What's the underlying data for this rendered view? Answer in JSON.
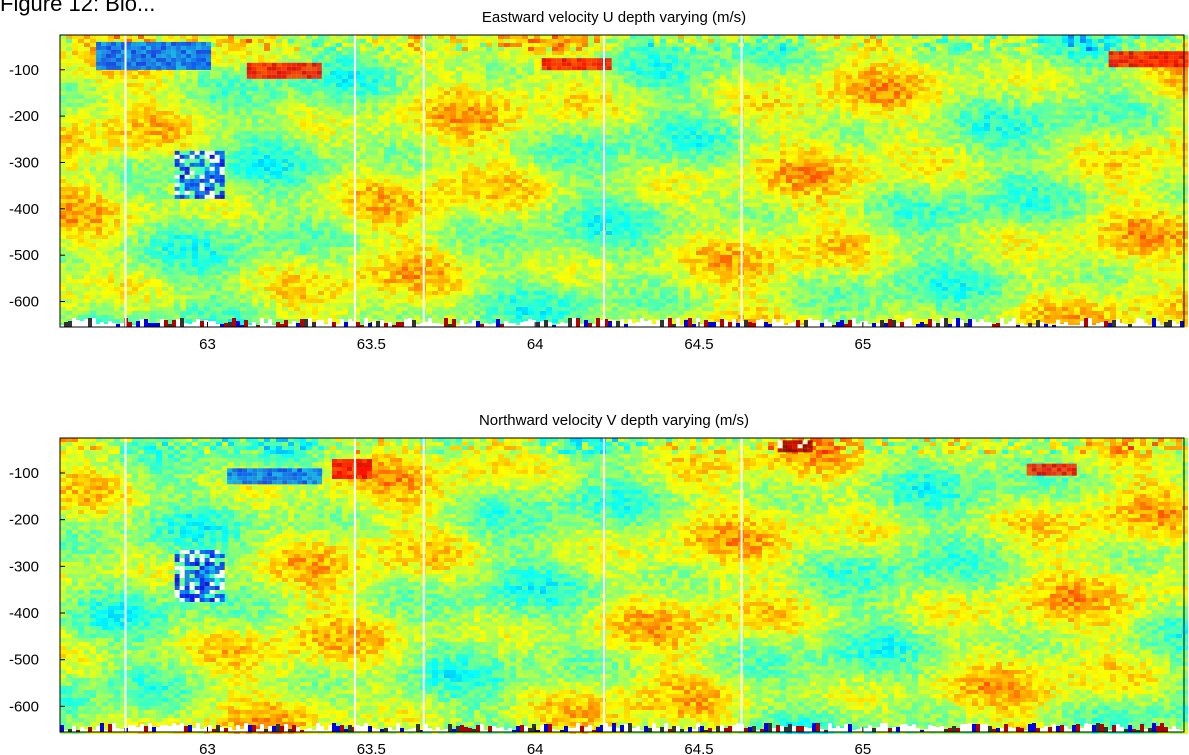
{
  "figure_caption": "Figure 12: Bio...",
  "chart_data": [
    {
      "type": "heatmap",
      "title": "Eastward velocity U depth varying (m/s)",
      "xlabel": "",
      "ylabel": "",
      "xlim": [
        62.55,
        65.98
      ],
      "ylim": [
        -655,
        -25
      ],
      "x_ticks": [
        63,
        63.5,
        64,
        64.5,
        65
      ],
      "x_tick_labels": [
        "63",
        "63.5",
        "64",
        "64.5",
        "65"
      ],
      "y_ticks": [
        -100,
        -200,
        -300,
        -400,
        -500,
        -600
      ],
      "y_tick_labels": [
        "-100",
        "-200",
        "-300",
        "-400",
        "-500",
        "-600"
      ],
      "colormap": "jet",
      "gap_lines_x": [
        62.75,
        63.45,
        63.66,
        64.21,
        64.63
      ],
      "features": [
        {
          "x": [
            63.12,
            63.34
          ],
          "y": [
            -85,
            -115
          ],
          "level": "red"
        },
        {
          "x": [
            64.02,
            64.22
          ],
          "y": [
            -75,
            -100
          ],
          "level": "red"
        },
        {
          "x": [
            65.75,
            65.98
          ],
          "y": [
            -60,
            -90
          ],
          "level": "red"
        },
        {
          "x": [
            62.9,
            63.04
          ],
          "y": [
            -275,
            -375
          ],
          "level": "mixed"
        },
        {
          "x": [
            62.66,
            63.0
          ],
          "y": [
            -40,
            -100
          ],
          "level": "blue"
        }
      ]
    },
    {
      "type": "heatmap",
      "title": "Northward velocity V depth varying (m/s)",
      "xlabel": "",
      "ylabel": "",
      "xlim": [
        62.55,
        65.98
      ],
      "ylim": [
        -655,
        -25
      ],
      "x_ticks": [
        63,
        63.5,
        64,
        64.5,
        65
      ],
      "x_tick_labels": [
        "63",
        "63.5",
        "64",
        "64.5",
        "65"
      ],
      "y_ticks": [
        -100,
        -200,
        -300,
        -400,
        -500,
        -600
      ],
      "y_tick_labels": [
        "-100",
        "-200",
        "-300",
        "-400",
        "-500",
        "-600"
      ],
      "colormap": "jet",
      "gap_lines_x": [
        62.75,
        63.45,
        63.66,
        64.21,
        64.63
      ],
      "features": [
        {
          "x": [
            63.06,
            63.34
          ],
          "y": [
            -90,
            -120
          ],
          "level": "blue"
        },
        {
          "x": [
            63.38,
            63.5
          ],
          "y": [
            -70,
            -110
          ],
          "level": "red"
        },
        {
          "x": [
            64.74,
            64.84
          ],
          "y": [
            -30,
            -50
          ],
          "level": "dark"
        },
        {
          "x": [
            65.5,
            65.64
          ],
          "y": [
            -80,
            -100
          ],
          "level": "red"
        },
        {
          "x": [
            62.9,
            63.04
          ],
          "y": [
            -265,
            -375
          ],
          "level": "mixed"
        }
      ]
    }
  ]
}
